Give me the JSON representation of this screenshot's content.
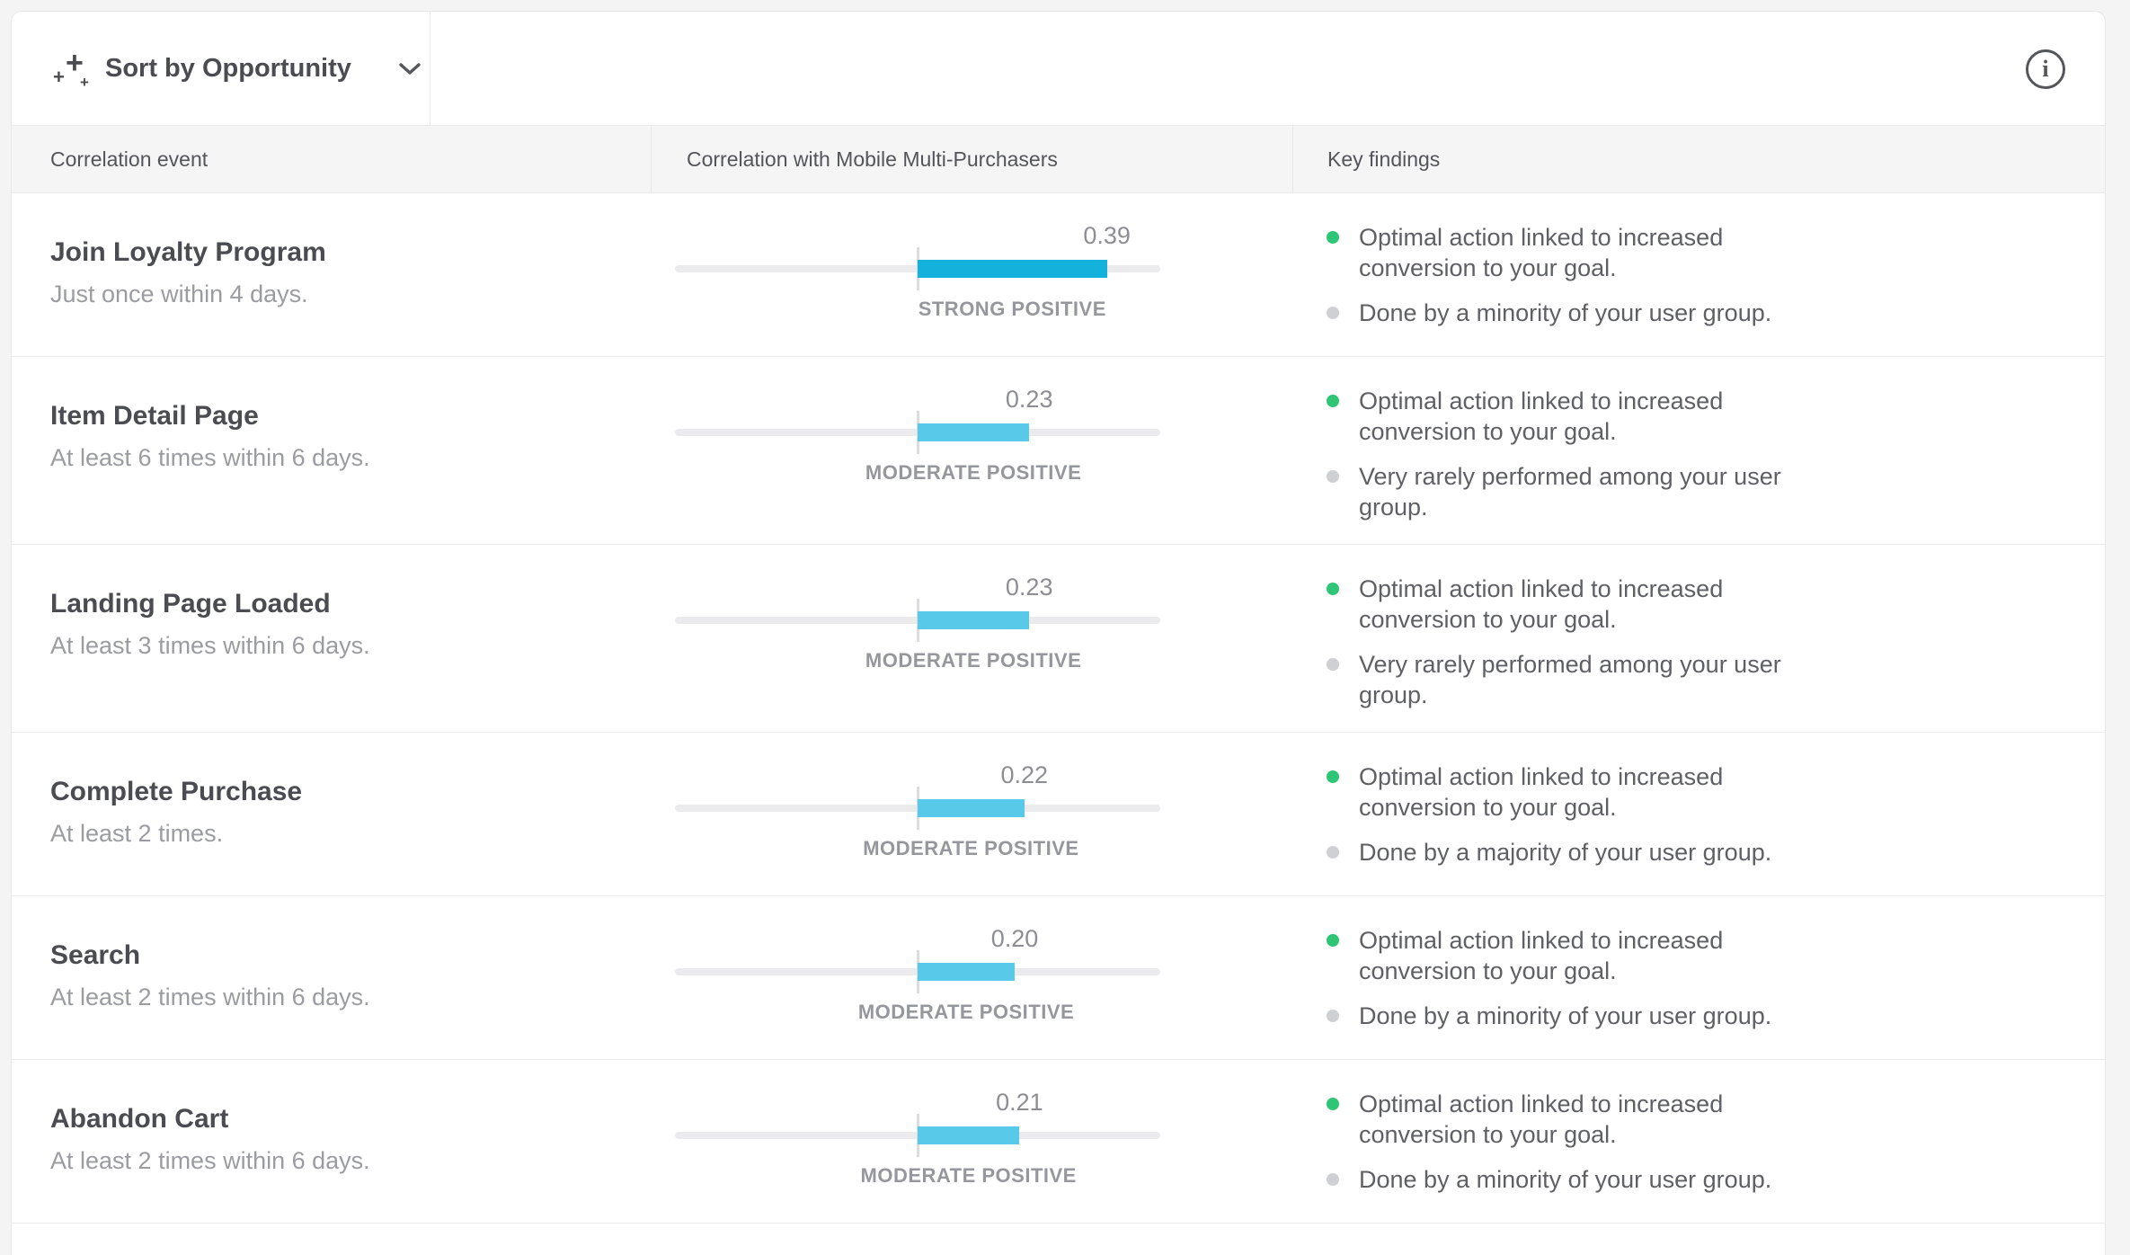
{
  "toolbar": {
    "sort_label": "Sort by Opportunity",
    "sparkle_glyph": "+",
    "info_glyph": "i"
  },
  "table": {
    "columns": [
      "Correlation event",
      "Correlation with Mobile Multi-Purchasers",
      "Key findings"
    ],
    "bar_scale_max": 0.5,
    "rows": [
      {
        "event": "Join Loyalty Program",
        "criteria": "Just once within 4 days.",
        "value": 0.39,
        "value_display": "0.39",
        "strength": "STRONG POSITIVE",
        "strength_level": "strong",
        "findings": [
          {
            "dot": "green",
            "text": "Optimal action linked to increased conversion to your goal."
          },
          {
            "dot": "gray",
            "text": "Done by a minority of your user group."
          }
        ]
      },
      {
        "event": "Item Detail Page",
        "criteria": "At least 6 times within 6 days.",
        "value": 0.23,
        "value_display": "0.23",
        "strength": "MODERATE POSITIVE",
        "strength_level": "moderate",
        "findings": [
          {
            "dot": "green",
            "text": "Optimal action linked to increased conversion to your goal."
          },
          {
            "dot": "gray",
            "text": "Very rarely performed among your user group."
          }
        ]
      },
      {
        "event": "Landing Page Loaded",
        "criteria": "At least 3 times within 6 days.",
        "value": 0.23,
        "value_display": "0.23",
        "strength": "MODERATE POSITIVE",
        "strength_level": "moderate",
        "findings": [
          {
            "dot": "green",
            "text": "Optimal action linked to increased conversion to your goal."
          },
          {
            "dot": "gray",
            "text": "Very rarely performed among your user group."
          }
        ]
      },
      {
        "event": "Complete Purchase",
        "criteria": "At least 2 times.",
        "value": 0.22,
        "value_display": "0.22",
        "strength": "MODERATE POSITIVE",
        "strength_level": "moderate",
        "findings": [
          {
            "dot": "green",
            "text": "Optimal action linked to increased conversion to your goal."
          },
          {
            "dot": "gray",
            "text": "Done by a majority of your user group."
          }
        ]
      },
      {
        "event": "Search",
        "criteria": "At least 2 times within 6 days.",
        "value": 0.2,
        "value_display": "0.20",
        "strength": "MODERATE POSITIVE",
        "strength_level": "moderate",
        "findings": [
          {
            "dot": "green",
            "text": "Optimal action linked to increased conversion to your goal."
          },
          {
            "dot": "gray",
            "text": "Done by a minority of your user group."
          }
        ]
      },
      {
        "event": "Abandon Cart",
        "criteria": "At least 2 times within 6 days.",
        "value": 0.21,
        "value_display": "0.21",
        "strength": "MODERATE POSITIVE",
        "strength_level": "moderate",
        "findings": [
          {
            "dot": "green",
            "text": "Optimal action linked to increased conversion to your goal."
          },
          {
            "dot": "gray",
            "text": "Done by a minority of your user group."
          }
        ]
      }
    ]
  },
  "colors": {
    "strong_bar": "#13b1dc",
    "moderate_bar": "#58c9e9",
    "green_dot": "#2fc577",
    "gray_dot": "#cfd0d3"
  }
}
